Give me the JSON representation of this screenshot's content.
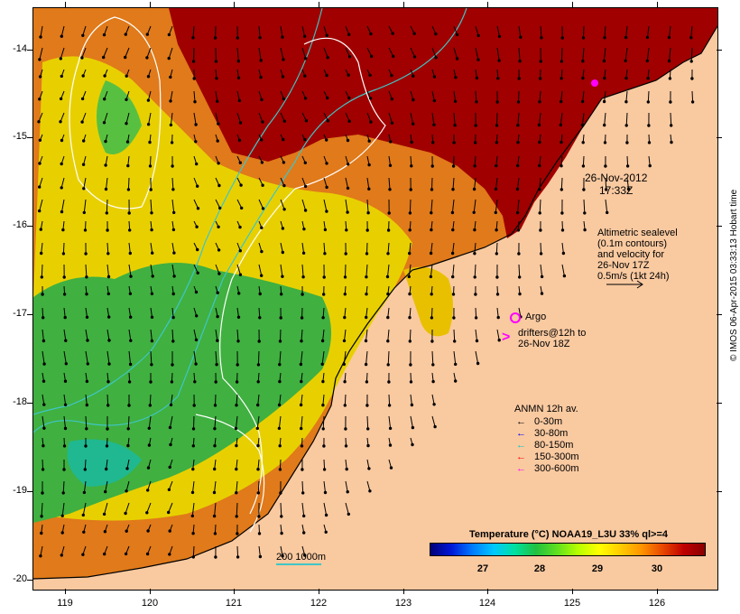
{
  "map": {
    "latitude_ticks": [
      "-14",
      "-15",
      "-16",
      "-17",
      "-18",
      "-19",
      "-20"
    ],
    "longitude_ticks": [
      "119",
      "120",
      "121",
      "122",
      "123",
      "124",
      "125",
      "126"
    ],
    "timestamp_line1": "26-Nov-2012",
    "timestamp_line2": "17:33Z"
  },
  "annotations": {
    "altimetric_line1": "Altimetric sealevel",
    "altimetric_line2": "(0.1m contours)",
    "altimetric_line3": "and velocity for",
    "altimetric_line4": "26-Nov 17Z",
    "altimetric_line5": "0.5m/s (1kt 24h)",
    "argo_label": "Argo",
    "drifters_line1": "drifters@12h to",
    "drifters_line2": "26-Nov 18Z"
  },
  "legend": {
    "anmn_title": "ANMN 12h av.",
    "depth_bins": [
      {
        "label": "0-30m",
        "color": "#000000"
      },
      {
        "label": "30-80m",
        "color": "#0000ff"
      },
      {
        "label": "80-150m",
        "color": "#00c8c8"
      },
      {
        "label": "150-300m",
        "color": "#ff0000"
      },
      {
        "label": "300-600m",
        "color": "#ff00ff"
      }
    ]
  },
  "colorbar": {
    "title": "Temperature (°C) NOAA19_L3U 33% ql>=4",
    "ticks": [
      "27",
      "28",
      "29",
      "30"
    ]
  },
  "scale_label": "200  1000m",
  "credit": "© IMOS 06-Apr-2015 03:33:13 Hobart time",
  "colors": {
    "land": "#f9c9a0",
    "warm": "#a00000",
    "orange": "#e07a1a",
    "yellow": "#e8d000",
    "green": "#40b040",
    "cyan_contour": "#3fc6c6"
  }
}
